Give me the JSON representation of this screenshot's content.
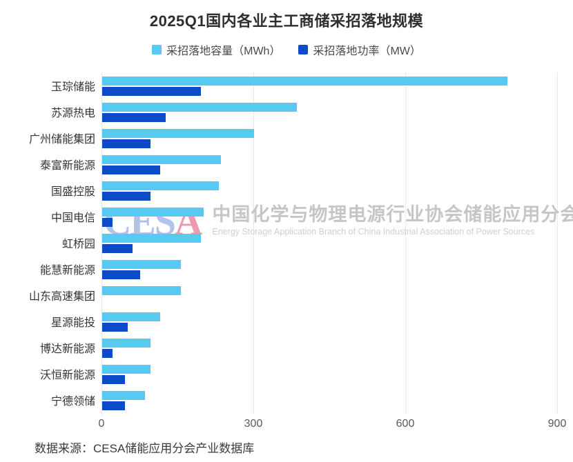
{
  "title": "2025Q1国内各业主工商储采招落地规模",
  "legend": [
    {
      "label": "采招落地容量（MWh）",
      "color": "#57CAF2"
    },
    {
      "label": "采招落地功率（MW）",
      "color": "#0C4AC8"
    }
  ],
  "chart_data": {
    "type": "bar",
    "orientation": "horizontal",
    "title": "2025Q1国内各业主工商储采招落地规模",
    "categories": [
      "玉琮储能",
      "苏源热电",
      "广州储能集团",
      "泰富新能源",
      "国盛控股",
      "中国电信",
      "虹桥园",
      "能慧新能源",
      "山东高速集团",
      "星源能投",
      "博达新能源",
      "沃恒新能源",
      "宁德领储"
    ],
    "series": [
      {
        "name": "采招落地容量（MWh）",
        "color": "#57CAF2",
        "values": [
          800,
          385,
          300,
          235,
          230,
          200,
          195,
          155,
          155,
          115,
          95,
          95,
          85
        ]
      },
      {
        "name": "采招落地功率（MW）",
        "color": "#0C4AC8",
        "values": [
          195,
          125,
          95,
          115,
          95,
          20,
          60,
          75,
          0,
          50,
          20,
          45,
          45
        ]
      }
    ],
    "xlim": [
      0,
      900
    ],
    "x_ticks": [
      0,
      300,
      600,
      900
    ],
    "grid": "dotted-vertical-gridlines",
    "legend_position": "top"
  },
  "watermark": {
    "logo_main": "CES",
    "logo_accent": "A",
    "cn": "中国化学与物理电源行业协会储能应用分会",
    "en": "Energy Storage Application Branch of China Industrial Association of Power Sources"
  },
  "source": "数据来源：CESA储能应用分会产业数据库",
  "colors": {
    "capacity_bar": "#57CAF2",
    "power_bar": "#0C4AC8",
    "gridline": "#d8d8d8",
    "axis_line": "#e4e4e4",
    "title_text": "#2e2e2e",
    "category_text": "#343434",
    "tick_text": "#595959",
    "source_text": "#3a3a3a"
  }
}
